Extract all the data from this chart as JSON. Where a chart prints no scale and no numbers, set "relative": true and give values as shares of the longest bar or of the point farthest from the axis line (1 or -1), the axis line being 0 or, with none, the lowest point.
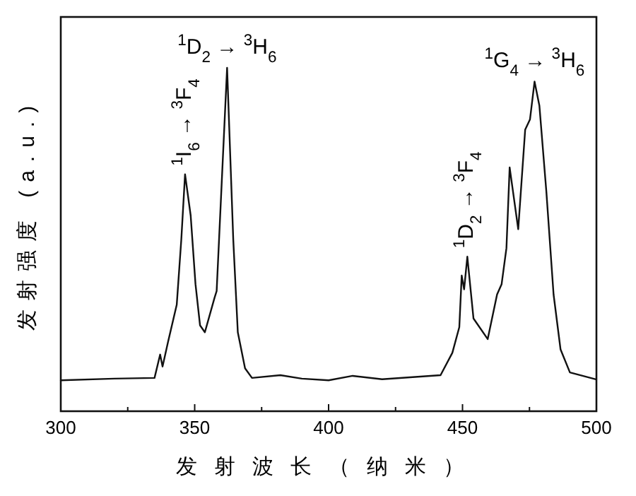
{
  "chart_data": {
    "type": "line",
    "relative": true,
    "xlabel": "发射波长（纳米）",
    "ylabel": "发射强度 (a.u.)",
    "xlim": [
      300,
      500
    ],
    "xticks": [
      300,
      {
        "value": 325,
        "label": null
      },
      350,
      {
        "value": 375,
        "label": null
      },
      400,
      {
        "value": 425,
        "label": null
      },
      450,
      {
        "value": 475,
        "label": null
      },
      500
    ],
    "series": [
      {
        "color": "#111111",
        "x": [
          300,
          320,
          335,
          337.1,
          338,
          340,
          343.3,
          345,
          346.4,
          348.5,
          350.3,
          352,
          353.8,
          357.4,
          358.2,
          359.1,
          362.1,
          364.4,
          366.1,
          368.8,
          371.4,
          382,
          390,
          400,
          409,
          420,
          441.8,
          446.2,
          448.8,
          449.7,
          450.6,
          451.8,
          454.1,
          459.4,
          462.9,
          464.6,
          466.4,
          467.6,
          470.8,
          473.4,
          475.2,
          476.9,
          478.7,
          481.3,
          484,
          486.6,
          490.1,
          499.8
        ],
        "values": [
          0.09,
          0.095,
          0.097,
          0.165,
          0.13,
          0.2,
          0.31,
          0.5,
          0.69,
          0.57,
          0.37,
          0.25,
          0.23,
          0.33,
          0.35,
          0.5,
          1.0,
          0.5,
          0.23,
          0.125,
          0.097,
          0.105,
          0.095,
          0.09,
          0.103,
          0.093,
          0.105,
          0.17,
          0.245,
          0.395,
          0.355,
          0.45,
          0.27,
          0.21,
          0.34,
          0.37,
          0.475,
          0.71,
          0.53,
          0.82,
          0.85,
          0.96,
          0.89,
          0.64,
          0.34,
          0.18,
          0.113,
          0.093
        ]
      }
    ],
    "annotations": [
      {
        "text": "$^{1}$I$_{6}$ → $^{3}$F$_{4}$",
        "x": 346.4,
        "y": 0.69
      },
      {
        "text": "$^{1}$D$_{2}$ → $^{3}$H$_{6}$",
        "x": 362.1,
        "y": 1.0
      },
      {
        "text": "$^{1}$D$_{2}$ → $^{3}$F$_{4}$",
        "x": 451.8,
        "y": 0.45
      },
      {
        "text": "$^{1}$G$_{4}$ → $^{3}$H$_{6}$",
        "x": 476.9,
        "y": 0.96
      }
    ]
  }
}
